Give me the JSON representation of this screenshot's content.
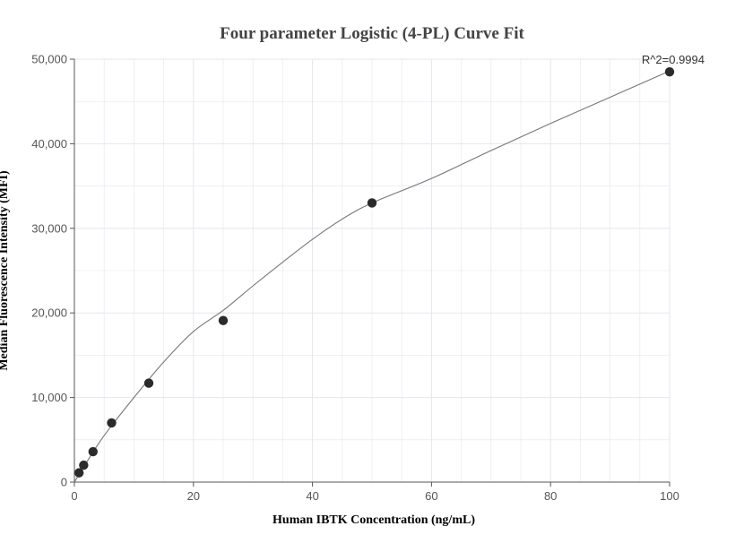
{
  "chart_data": {
    "type": "scatter",
    "title": "Four parameter Logistic (4-PL) Curve Fit",
    "xlabel": "Human IBTK Concentration (ng/mL)",
    "ylabel": "Median Fluorescence Intensity (MFI)",
    "xlim": [
      0,
      100
    ],
    "ylim": [
      0,
      50000
    ],
    "x_ticks": [
      0,
      20,
      40,
      60,
      80,
      100
    ],
    "x_tick_labels": [
      "0",
      "20",
      "40",
      "60",
      "80",
      "100"
    ],
    "y_ticks": [
      0,
      10000,
      20000,
      30000,
      40000,
      50000
    ],
    "y_tick_labels": [
      "0",
      "10,000",
      "20,000",
      "30,000",
      "40,000",
      "50,000"
    ],
    "grid": true,
    "annotation": "R^2=0.9994",
    "series": [
      {
        "points": [
          {
            "x": 0.78,
            "y": 1100
          },
          {
            "x": 1.56,
            "y": 2000
          },
          {
            "x": 3.13,
            "y": 3600
          },
          {
            "x": 6.25,
            "y": 7000
          },
          {
            "x": 12.5,
            "y": 11700
          },
          {
            "x": 25,
            "y": 19100
          },
          {
            "x": 50,
            "y": 33000
          },
          {
            "x": 100,
            "y": 48500
          }
        ]
      }
    ],
    "fit_curve": {
      "x": [
        0,
        2,
        5,
        10,
        15,
        20,
        25,
        30,
        35,
        40,
        45,
        50,
        60,
        70,
        80,
        90,
        100
      ],
      "y": [
        0,
        2300,
        5500,
        10000,
        14200,
        17800,
        20300,
        23200,
        26000,
        28700,
        31100,
        33000,
        35900,
        39200,
        42400,
        45500,
        48600
      ]
    },
    "colors": {
      "point": "#2b2b2b",
      "curve": "#777777",
      "grid": "#e3e7ee",
      "axis": "#555555"
    }
  }
}
